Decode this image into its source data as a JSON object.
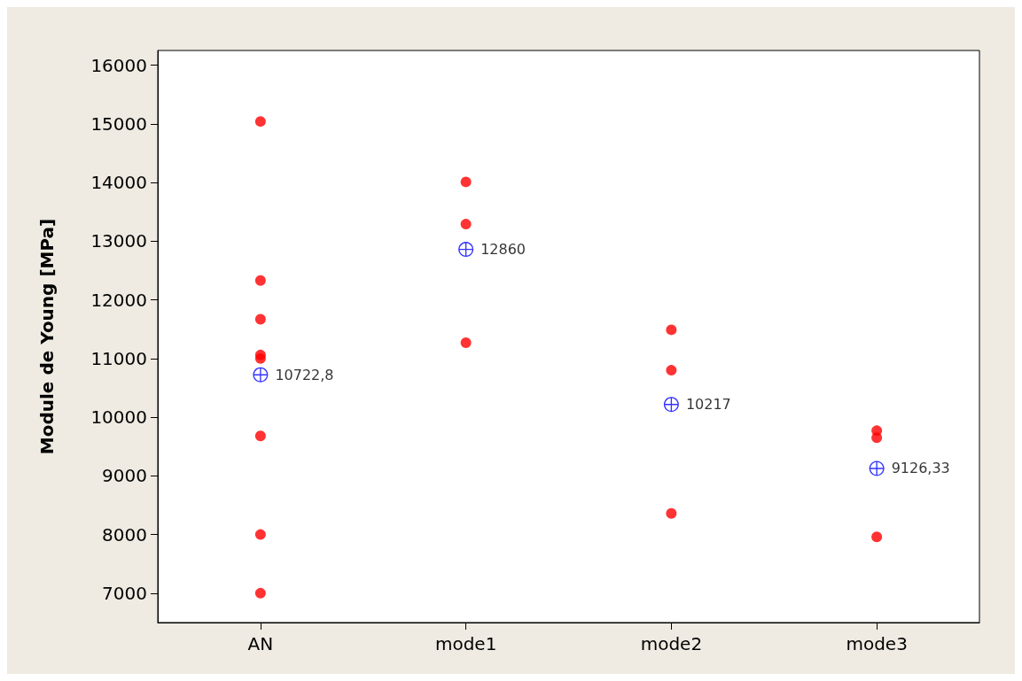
{
  "chart_data": {
    "type": "scatter",
    "ylabel": "Module de Young [MPa]",
    "categories": [
      "AN",
      "mode1",
      "mode2",
      "mode3"
    ],
    "series": [
      {
        "color": "#ff0000",
        "marker": "circle",
        "x": [
          "AN",
          "AN",
          "AN",
          "AN",
          "AN",
          "AN",
          "AN",
          "AN",
          "mode1",
          "mode1",
          "mode1",
          "mode2",
          "mode2",
          "mode2",
          "mode3",
          "mode3",
          "mode3"
        ],
        "values": [
          15040,
          12330,
          11670,
          11060,
          11000,
          9680,
          8000,
          7000,
          14010,
          13290,
          11270,
          11490,
          10800,
          8360,
          9770,
          9650,
          7960
        ]
      },
      {
        "color": "#0000ff",
        "marker": "cross",
        "x": [
          "AN",
          "mode1",
          "mode2",
          "mode3"
        ],
        "values": [
          10722.8,
          12860,
          10217,
          9126.33
        ],
        "value_labels": [
          "10722,8",
          "12860",
          "10217",
          "9126,33"
        ]
      }
    ],
    "ylim": [
      6500,
      16250
    ],
    "yticks": [
      7000,
      8000,
      9000,
      10000,
      11000,
      12000,
      13000,
      14000,
      15000,
      16000
    ],
    "grid": false
  }
}
